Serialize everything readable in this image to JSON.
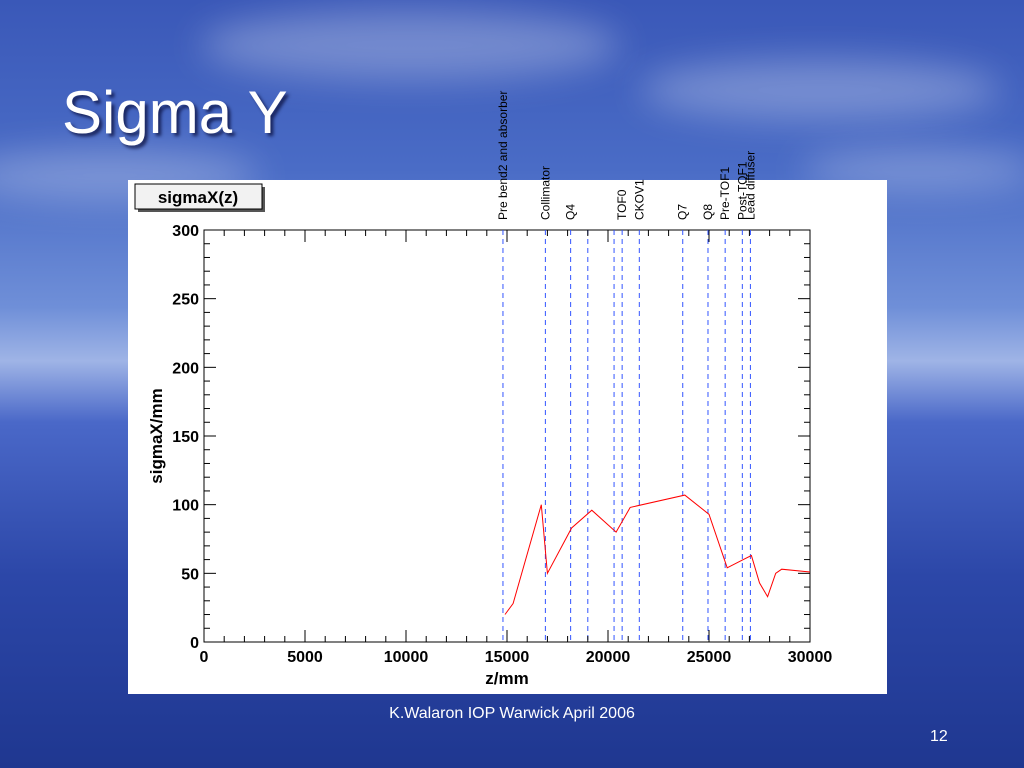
{
  "slide": {
    "title": "Sigma Y",
    "footer": "K.Walaron IOP Warwick April 2006",
    "page_number": "12"
  },
  "colors": {
    "series": "#ff0000",
    "marker_lines": "#3355ff",
    "slide_text": "#ffffff"
  },
  "chart_data": {
    "type": "line",
    "title": "sigmaX(z)",
    "xlabel": "z/mm",
    "ylabel": "sigmaX/mm",
    "xlim": [
      0,
      30000
    ],
    "ylim": [
      0,
      300
    ],
    "xticks": [
      0,
      5000,
      10000,
      15000,
      20000,
      25000,
      30000
    ],
    "yticks": [
      0,
      50,
      100,
      150,
      200,
      250,
      300
    ],
    "grid": false,
    "series": [
      {
        "x": [
          14900,
          15300,
          16700,
          17000,
          18200,
          19200,
          20400,
          21100,
          23800,
          25000,
          25900,
          26700,
          27100,
          27500,
          27900,
          28300,
          28600,
          30000
        ],
        "y": [
          20,
          28,
          100,
          50,
          83,
          96,
          80,
          98,
          107,
          93,
          54,
          60,
          63,
          43,
          33,
          50,
          53,
          51
        ]
      }
    ],
    "markers": [
      {
        "z": 14800,
        "label": "Pre bend2 and absorber"
      },
      {
        "z": 16900,
        "label": "Collimator"
      },
      {
        "z": 18150,
        "label": "Q4"
      },
      {
        "z": 19000,
        "label": ""
      },
      {
        "z": 20300,
        "label": ""
      },
      {
        "z": 20700,
        "label": "TOF0"
      },
      {
        "z": 21550,
        "label": "CKOV1"
      },
      {
        "z": 23700,
        "label": "Q7"
      },
      {
        "z": 24950,
        "label": "Q8"
      },
      {
        "z": 25800,
        "label": "Pre-TOF1"
      },
      {
        "z": 26650,
        "label": "Post-TOF1"
      },
      {
        "z": 27050,
        "label": "Lead diffuser"
      }
    ]
  }
}
